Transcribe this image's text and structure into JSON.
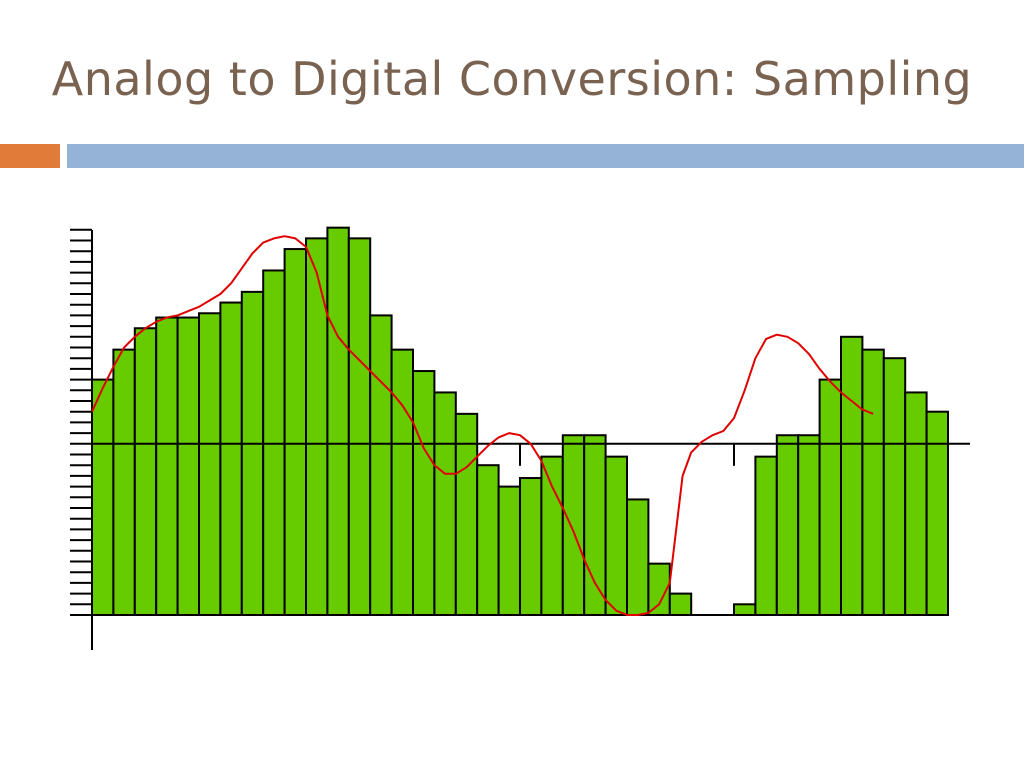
{
  "slide": {
    "title": "Analog to Digital Conversion: Sampling",
    "accent_orange": "#e07b39",
    "accent_blue": "#95b3d7",
    "title_color": "#7a6250"
  },
  "chart_data": {
    "type": "bar",
    "description_overlay": "line",
    "bar_color": "#66cc00",
    "bar_outline_color": "#000000",
    "line_color": "#e00000",
    "grid": false,
    "ylim": [
      -3,
      18
    ],
    "y_tick_step": 0.5,
    "zero_line_value": 8,
    "x_major_ticks_every": 10,
    "samples": [
      11,
      12.4,
      13.4,
      13.9,
      13.9,
      14.1,
      14.6,
      15.1,
      16.1,
      17.1,
      17.6,
      18.1,
      17.6,
      14,
      12.4,
      11.4,
      10.4,
      9.4,
      7,
      6,
      6.4,
      7.4,
      8.4,
      8.4,
      7.4,
      5.4,
      2.4,
      1,
      0,
      0,
      0.5,
      7.4,
      8.4,
      8.4,
      11,
      13,
      12.4,
      12,
      10.4,
      9.5
    ],
    "analog_curve": [
      [
        0,
        9.5
      ],
      [
        0.5,
        10.6
      ],
      [
        1,
        11.6
      ],
      [
        1.5,
        12.5
      ],
      [
        2,
        13.0
      ],
      [
        2.5,
        13.4
      ],
      [
        3,
        13.7
      ],
      [
        3.5,
        13.9
      ],
      [
        4,
        14.0
      ],
      [
        4.5,
        14.2
      ],
      [
        5,
        14.4
      ],
      [
        5.5,
        14.7
      ],
      [
        6,
        15.0
      ],
      [
        6.5,
        15.5
      ],
      [
        7,
        16.2
      ],
      [
        7.5,
        16.9
      ],
      [
        8,
        17.4
      ],
      [
        8.5,
        17.6
      ],
      [
        9,
        17.7
      ],
      [
        9.5,
        17.6
      ],
      [
        10,
        17.2
      ],
      [
        10.5,
        16.0
      ],
      [
        11,
        14.0
      ],
      [
        11.5,
        13.0
      ],
      [
        12,
        12.4
      ],
      [
        12.5,
        11.9
      ],
      [
        13,
        11.4
      ],
      [
        13.5,
        10.9
      ],
      [
        14,
        10.4
      ],
      [
        14.5,
        9.8
      ],
      [
        15,
        9.0
      ],
      [
        15.5,
        7.8
      ],
      [
        16,
        7.0
      ],
      [
        16.5,
        6.6
      ],
      [
        17,
        6.6
      ],
      [
        17.5,
        6.9
      ],
      [
        18,
        7.4
      ],
      [
        18.5,
        7.9
      ],
      [
        19,
        8.3
      ],
      [
        19.5,
        8.5
      ],
      [
        20,
        8.4
      ],
      [
        20.5,
        8.0
      ],
      [
        21,
        7.2
      ],
      [
        21.5,
        6.0
      ],
      [
        22,
        5.0
      ],
      [
        22.5,
        3.9
      ],
      [
        23,
        2.6
      ],
      [
        23.5,
        1.5
      ],
      [
        24,
        0.7
      ],
      [
        24.5,
        0.2
      ],
      [
        25,
        0.0
      ],
      [
        25.5,
        0.0
      ],
      [
        26,
        0.1
      ],
      [
        26.5,
        0.5
      ],
      [
        27,
        1.5
      ],
      [
        27.3,
        4.0
      ],
      [
        27.6,
        6.5
      ],
      [
        28,
        7.6
      ],
      [
        28.5,
        8.1
      ],
      [
        29,
        8.4
      ],
      [
        29.5,
        8.6
      ],
      [
        30,
        9.2
      ],
      [
        30.5,
        10.5
      ],
      [
        31,
        12.0
      ],
      [
        31.5,
        12.9
      ],
      [
        32,
        13.1
      ],
      [
        32.5,
        13.0
      ],
      [
        33,
        12.7
      ],
      [
        33.5,
        12.2
      ],
      [
        34,
        11.5
      ],
      [
        34.5,
        10.9
      ],
      [
        35,
        10.4
      ],
      [
        35.5,
        10.0
      ],
      [
        36,
        9.6
      ],
      [
        36.5,
        9.4
      ]
    ]
  }
}
